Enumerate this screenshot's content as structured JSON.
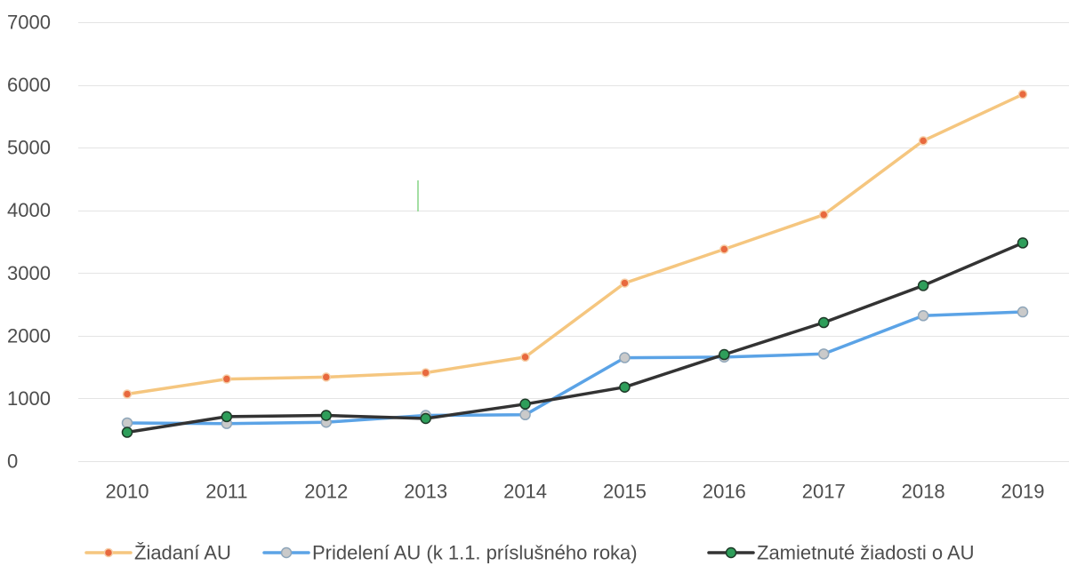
{
  "chart_data": {
    "type": "line",
    "categories": [
      "2010",
      "2011",
      "2012",
      "2013",
      "2014",
      "2015",
      "2016",
      "2017",
      "2018",
      "2019"
    ],
    "ylim": [
      0,
      7000
    ],
    "yticks": [
      0,
      1000,
      2000,
      3000,
      4000,
      5000,
      6000,
      7000
    ],
    "grid": true,
    "legend_position": "bottom",
    "series": [
      {
        "name": "Žiadaní AU",
        "values": [
          1070,
          1310,
          1340,
          1410,
          1660,
          2840,
          3380,
          3930,
          5110,
          5850
        ],
        "line_color": "#F5C67F",
        "marker_color": "#E8693E",
        "marker_edge_color": "#F6CFA8"
      },
      {
        "name": "Pridelení AU (k 1.1. príslušného roka)",
        "values": [
          610,
          600,
          620,
          730,
          740,
          1650,
          1660,
          1710,
          2320,
          2380
        ],
        "line_color": "#5BA3E6",
        "marker_color": "#CACACA",
        "marker_edge_color": "#8FA6BA"
      },
      {
        "name": "Zamietnuté žiadosti o AU",
        "values": [
          460,
          710,
          730,
          680,
          910,
          1180,
          1700,
          2210,
          2800,
          3480
        ],
        "line_color": "#333333",
        "marker_color": "#2E9E5A",
        "marker_edge_color": "#1E3A28"
      }
    ]
  }
}
